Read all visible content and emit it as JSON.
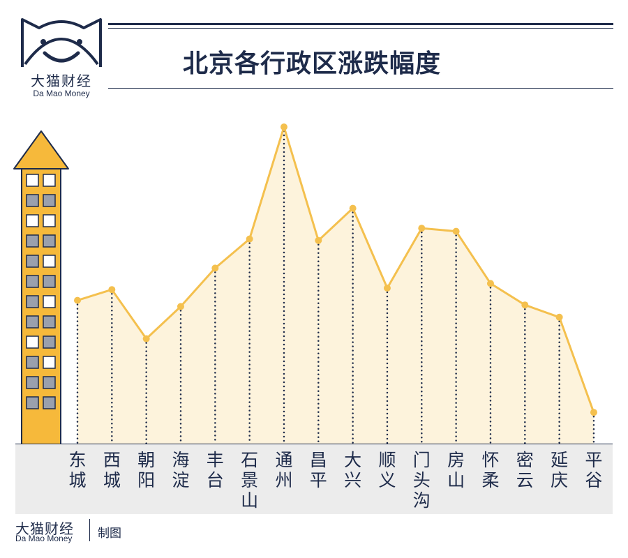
{
  "brand": {
    "name_cn": "大猫财经",
    "name_en": "Da Mao Money",
    "credit": "制图"
  },
  "colors": {
    "navy": "#1e2b4a",
    "line": "#f4c04e",
    "fill": "#fdf3dc",
    "building": "#f6b93b",
    "band": "#ececec"
  },
  "chart_data": {
    "type": "area",
    "title": "北京各行政区涨跌幅度",
    "categories": [
      "东城",
      "西城",
      "朝阳",
      "海淀",
      "丰台",
      "石景山",
      "通州",
      "昌平",
      "大兴",
      "顺义",
      "门头沟",
      "房山",
      "怀柔",
      "密云",
      "延庆",
      "平谷"
    ],
    "values": [
      43.5,
      47,
      31,
      41.5,
      54,
      63.5,
      100,
      63,
      73.5,
      47.5,
      67,
      66,
      49,
      42,
      38,
      7
    ],
    "ylim": [
      0,
      100
    ],
    "xlabel": "",
    "ylabel": "",
    "grid": false,
    "legend": "none"
  }
}
